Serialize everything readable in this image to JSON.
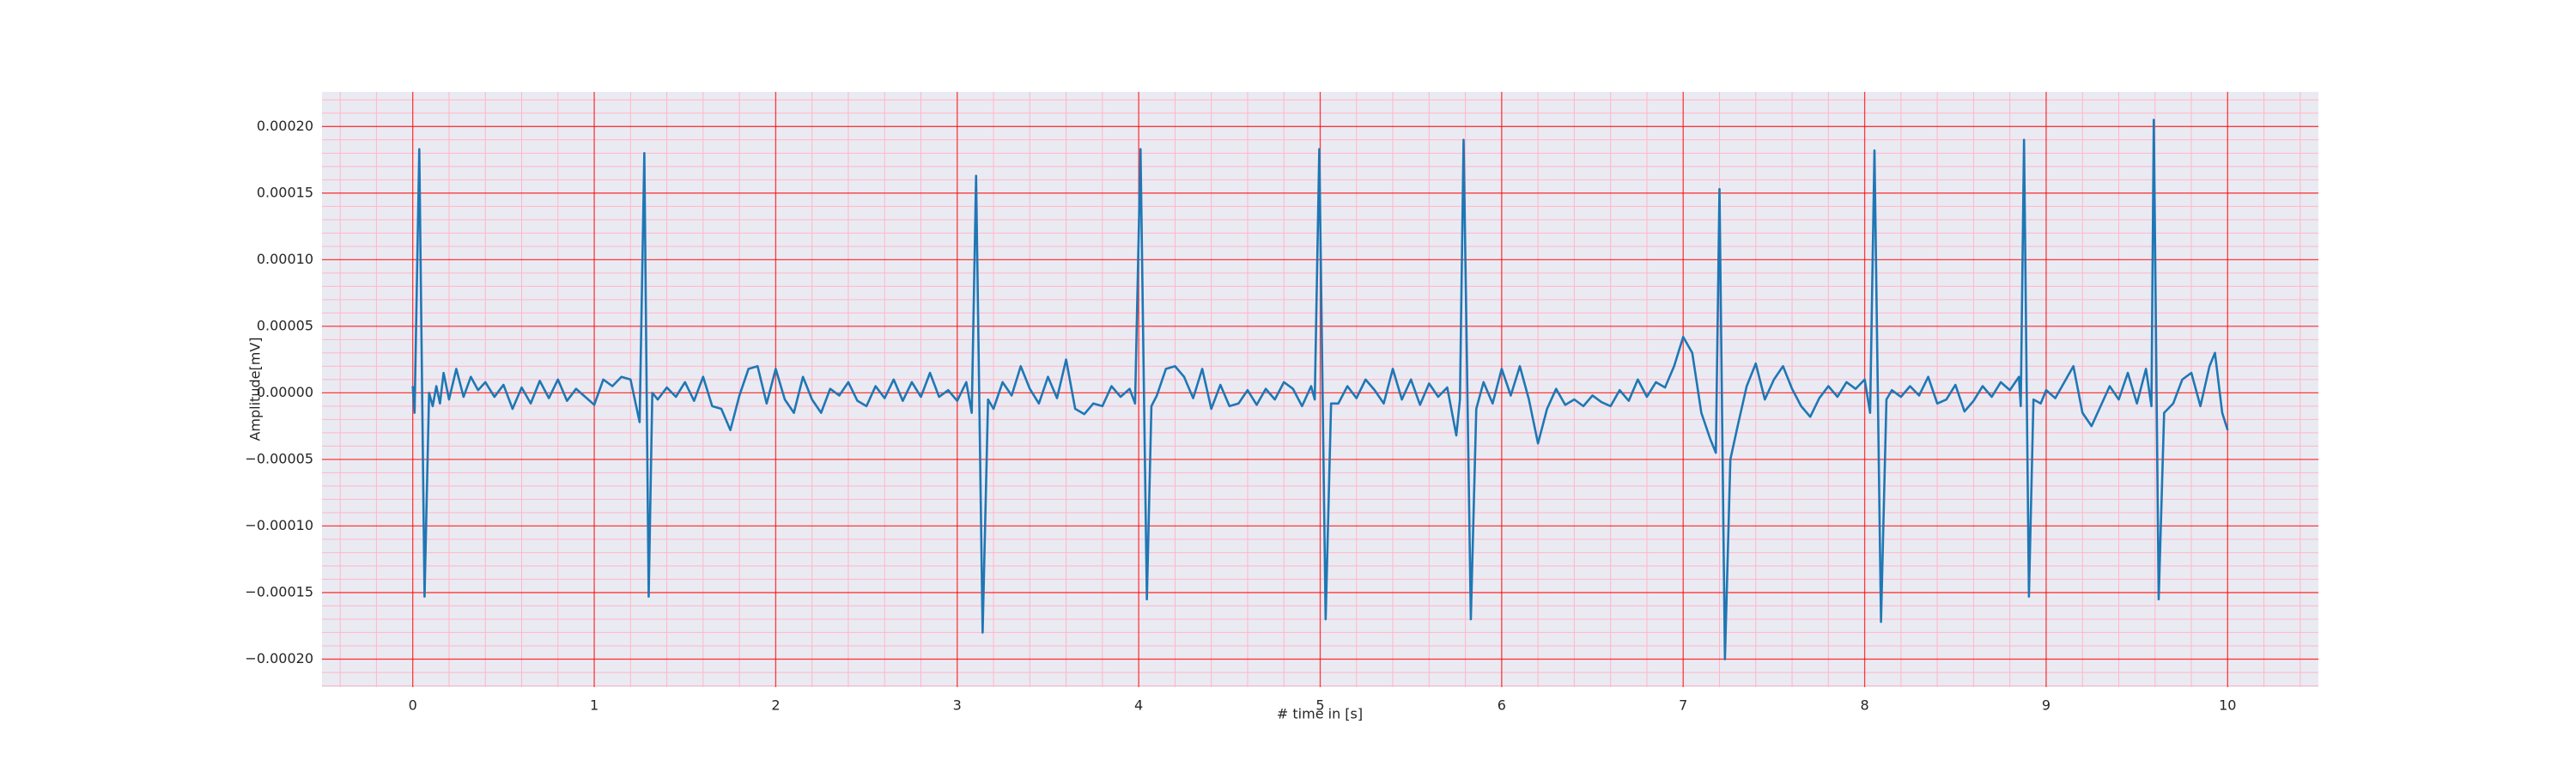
{
  "chart_data": {
    "type": "line",
    "xlabel": "# time in [s]",
    "ylabel": "Amplitude[mV]",
    "color": "#1f77b4",
    "grid": true,
    "grid_color": "#ff0000",
    "minor_grid": true,
    "xlim": [
      -0.5,
      10.5
    ],
    "ylim": [
      -0.000221,
      0.000226
    ],
    "xticks": [
      0,
      1,
      2,
      3,
      4,
      5,
      6,
      7,
      8,
      9,
      10
    ],
    "yticks": [
      {
        "value": 0.0002,
        "label": "0.00020"
      },
      {
        "value": 0.00015,
        "label": "0.00015"
      },
      {
        "value": 0.0001,
        "label": "0.00010"
      },
      {
        "value": 5e-05,
        "label": "0.00005"
      },
      {
        "value": 0,
        "label": "0.00000"
      },
      {
        "value": -5e-05,
        "label": "−0.00005"
      },
      {
        "value": -0.0001,
        "label": "−0.00010"
      },
      {
        "value": -0.00015,
        "label": "−0.00015"
      },
      {
        "value": -0.0002,
        "label": "−0.00020"
      }
    ],
    "x": [
      0,
      0.01,
      0.036,
      0.065,
      0.09,
      0.11,
      0.13,
      0.15,
      0.17,
      0.2,
      0.24,
      0.28,
      0.32,
      0.36,
      0.4,
      0.45,
      0.5,
      0.55,
      0.6,
      0.65,
      0.7,
      0.75,
      0.8,
      0.85,
      0.9,
      0.95,
      1.0,
      1.05,
      1.1,
      1.15,
      1.2,
      1.25,
      1.276,
      1.3,
      1.32,
      1.35,
      1.4,
      1.45,
      1.5,
      1.55,
      1.6,
      1.65,
      1.7,
      1.75,
      1.8,
      1.85,
      1.9,
      1.95,
      2.0,
      2.05,
      2.1,
      2.15,
      2.2,
      2.25,
      2.3,
      2.35,
      2.4,
      2.45,
      2.5,
      2.55,
      2.6,
      2.65,
      2.7,
      2.75,
      2.8,
      2.85,
      2.9,
      2.95,
      3.0,
      3.05,
      3.08,
      3.104,
      3.14,
      3.17,
      3.2,
      3.25,
      3.3,
      3.35,
      3.4,
      3.45,
      3.5,
      3.55,
      3.6,
      3.65,
      3.7,
      3.75,
      3.8,
      3.85,
      3.9,
      3.95,
      3.98,
      4.01,
      4.045,
      4.07,
      4.1,
      4.15,
      4.2,
      4.25,
      4.3,
      4.35,
      4.4,
      4.45,
      4.5,
      4.55,
      4.6,
      4.65,
      4.7,
      4.75,
      4.8,
      4.85,
      4.9,
      4.95,
      4.97,
      4.995,
      5.03,
      5.06,
      5.1,
      5.15,
      5.2,
      5.25,
      5.3,
      5.35,
      5.4,
      5.45,
      5.5,
      5.55,
      5.6,
      5.65,
      5.7,
      5.75,
      5.77,
      5.79,
      5.83,
      5.86,
      5.9,
      5.95,
      6.0,
      6.05,
      6.1,
      6.15,
      6.2,
      6.25,
      6.3,
      6.35,
      6.4,
      6.45,
      6.5,
      6.55,
      6.6,
      6.65,
      6.7,
      6.75,
      6.8,
      6.85,
      6.9,
      6.95,
      7.0,
      7.05,
      7.1,
      7.15,
      7.18,
      7.2,
      7.23,
      7.26,
      7.3,
      7.35,
      7.4,
      7.45,
      7.5,
      7.55,
      7.6,
      7.65,
      7.7,
      7.75,
      7.8,
      7.85,
      7.9,
      7.95,
      8.0,
      8.03,
      8.054,
      8.09,
      8.12,
      8.15,
      8.2,
      8.25,
      8.3,
      8.35,
      8.4,
      8.45,
      8.5,
      8.55,
      8.6,
      8.65,
      8.7,
      8.75,
      8.8,
      8.85,
      8.86,
      8.878,
      8.905,
      8.93,
      8.97,
      9.0,
      9.05,
      9.1,
      9.15,
      9.2,
      9.25,
      9.3,
      9.35,
      9.4,
      9.45,
      9.5,
      9.55,
      9.58,
      9.593,
      9.62,
      9.65,
      9.7,
      9.75,
      9.8,
      9.85,
      9.9,
      9.93,
      9.97,
      10.0
    ],
    "values": [
      5e-06,
      -1.5e-05,
      0.000183,
      -0.000153,
      0,
      -1e-05,
      5e-06,
      -8e-06,
      1.5e-05,
      -5e-06,
      1.8e-05,
      -3e-06,
      1.2e-05,
      2e-06,
      8e-06,
      -3e-06,
      6e-06,
      -1.2e-05,
      4e-06,
      -8e-06,
      9e-06,
      -4e-06,
      1e-05,
      -6e-06,
      3e-06,
      -3e-06,
      -9e-06,
      1e-05,
      5e-06,
      1.2e-05,
      1e-05,
      -2.2e-05,
      0.00018,
      -0.000153,
      0,
      -5e-06,
      4e-06,
      -3e-06,
      8e-06,
      -6e-06,
      1.2e-05,
      -1e-05,
      -1.2e-05,
      -2.8e-05,
      -2e-06,
      1.8e-05,
      2e-05,
      -8e-06,
      1.8e-05,
      -5e-06,
      -1.5e-05,
      1.2e-05,
      -5e-06,
      -1.5e-05,
      3e-06,
      -2e-06,
      8e-06,
      -6e-06,
      -1e-05,
      5e-06,
      -4e-06,
      1e-05,
      -6e-06,
      8e-06,
      -3e-06,
      1.5e-05,
      -3e-06,
      2e-06,
      -6e-06,
      8e-06,
      -1.5e-05,
      0.000163,
      -0.00018,
      -5e-06,
      -1.2e-05,
      8e-06,
      -2e-06,
      2e-05,
      3e-06,
      -8e-06,
      1.2e-05,
      -4e-06,
      2.5e-05,
      -1.2e-05,
      -1.6e-05,
      -8e-06,
      -1e-05,
      5e-06,
      -3e-06,
      3e-06,
      -8e-06,
      0.000183,
      -0.000155,
      -1e-05,
      -2e-06,
      1.8e-05,
      2e-05,
      1.2e-05,
      -4e-06,
      1.8e-05,
      -1.2e-05,
      6e-06,
      -1e-05,
      -8e-06,
      2e-06,
      -9e-06,
      3e-06,
      -5e-06,
      8e-06,
      3e-06,
      -1e-05,
      5e-06,
      -5e-06,
      0.000183,
      -0.00017,
      -8e-06,
      -8e-06,
      5e-06,
      -4e-06,
      1e-05,
      2e-06,
      -8e-06,
      1.8e-05,
      -5e-06,
      1e-05,
      -9e-06,
      7e-06,
      -3e-06,
      4e-06,
      -3.2e-05,
      -5e-06,
      0.00019,
      -0.00017,
      -1.2e-05,
      8e-06,
      -8e-06,
      1.8e-05,
      -2e-06,
      2e-05,
      -5e-06,
      -3.8e-05,
      -1.2e-05,
      3e-06,
      -9e-06,
      -5e-06,
      -1e-05,
      -2e-06,
      -7e-06,
      -1e-05,
      2e-06,
      -6e-06,
      1e-05,
      -3e-06,
      8e-06,
      4e-06,
      2e-05,
      4.2e-05,
      3e-05,
      -1.5e-05,
      -3.5e-05,
      -4.5e-05,
      0.000153,
      -0.0002,
      -5e-05,
      -2.5e-05,
      5e-06,
      2.2e-05,
      -5e-06,
      1e-05,
      2e-05,
      3e-06,
      -1e-05,
      -1.8e-05,
      -4e-06,
      5e-06,
      -3e-06,
      8e-06,
      3e-06,
      1e-05,
      -1.5e-05,
      0.000182,
      -0.000172,
      -5e-06,
      2e-06,
      -3e-06,
      5e-06,
      -2e-06,
      1.2e-05,
      -8e-06,
      -5e-06,
      6e-06,
      -1.4e-05,
      -6e-06,
      5e-06,
      -3e-06,
      8e-06,
      2e-06,
      1.2e-05,
      -1e-05,
      0.00019,
      -0.000153,
      -5e-06,
      -8e-06,
      2e-06,
      -4e-06,
      8e-06,
      2e-05,
      -1.5e-05,
      -2.5e-05,
      -1e-05,
      5e-06,
      -5e-06,
      1.5e-05,
      -8e-06,
      1.8e-05,
      -1e-05,
      0.000205,
      -0.000155,
      -1.5e-05,
      -8e-06,
      1e-05,
      1.5e-05,
      -1e-05,
      2e-05,
      3e-05,
      -1.5e-05,
      -2.8e-05
    ]
  }
}
